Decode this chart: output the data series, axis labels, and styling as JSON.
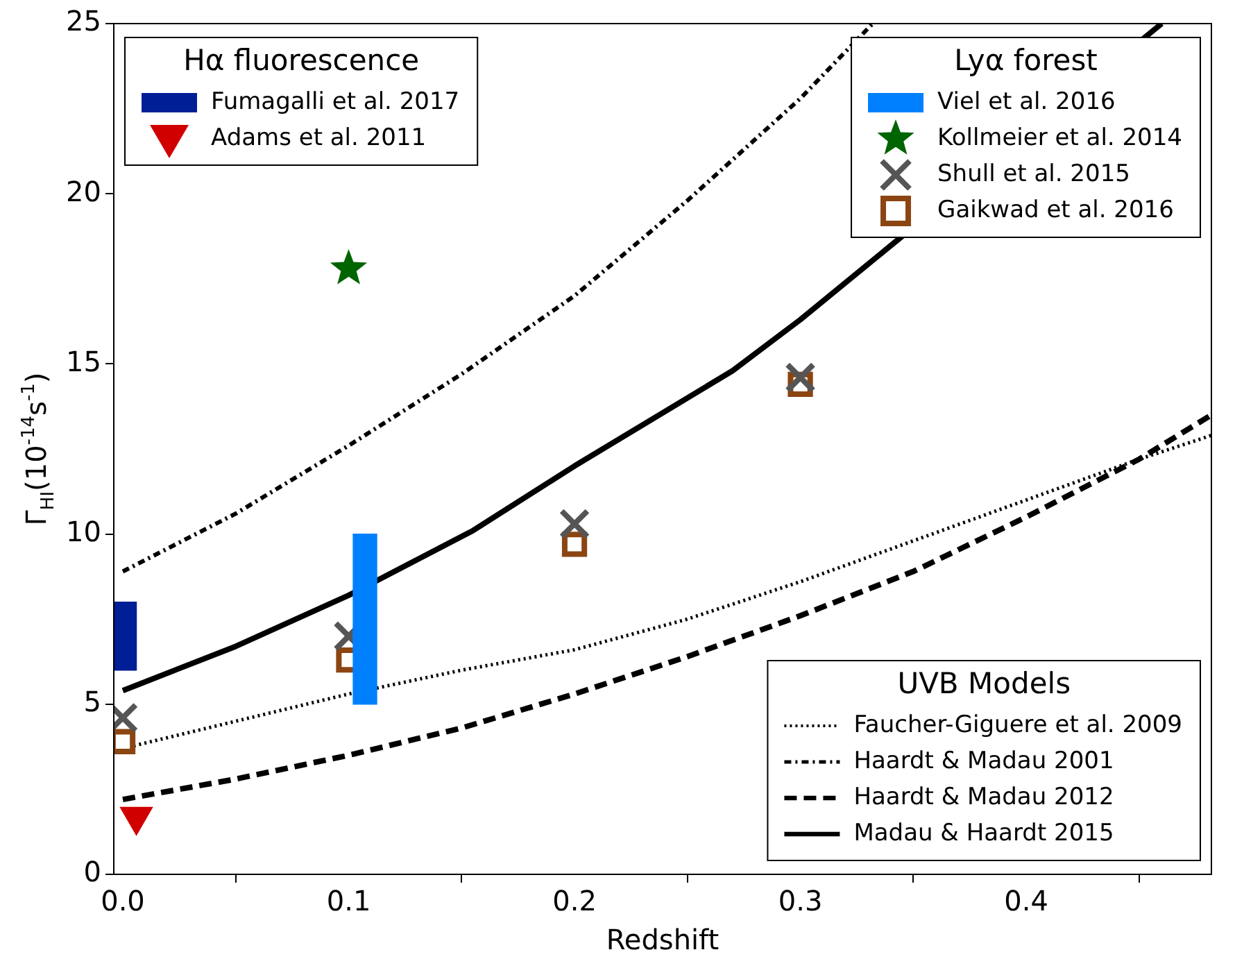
{
  "chart_data": {
    "type": "scatter",
    "xlabel": "Redshift",
    "ylabel": "Γ$_{HI}$(10$^{-14}$s$^{-1}$)",
    "xlim": [
      -0.004,
      0.482
    ],
    "xticks": [
      {
        "value": 0,
        "label": "0.0"
      },
      0.1,
      0.2,
      0.3,
      0.4
    ],
    "ylim": [
      0,
      25
    ],
    "yticks": [
      0,
      5,
      10,
      15,
      20,
      25
    ],
    "grid": false,
    "legend": [
      "top left",
      "top right",
      "bottom right"
    ],
    "legend_title": [
      "Hα fluorescence",
      "Lyα forest",
      "UVB Models"
    ],
    "series": [
      {
        "name": "Fumagalli et al. 2017",
        "type": "bar",
        "color": "#001f96",
        "x": [
          0.006
        ],
        "base": [
          6
        ],
        "values": [
          2
        ]
      },
      {
        "name": "Adams et al. 2011",
        "marker": "triangle-down",
        "color": "#d10000",
        "x": [
          0.006
        ],
        "values": [
          1.7
        ]
      },
      {
        "name": "Viel et al. 2016",
        "type": "bar",
        "color": "#0080ff",
        "x": [
          0.102
        ],
        "base": [
          5
        ],
        "values": [
          5
        ]
      },
      {
        "name": "Kollmeier et al. 2014",
        "marker": "star",
        "color": "#006400",
        "x": [
          0.1
        ],
        "values": [
          17.8
        ]
      },
      {
        "name": "Shull et al. 2015",
        "marker": "cross",
        "color": "#555555",
        "x": [
          0,
          0.1,
          0.2,
          0.3
        ],
        "values": [
          4.6,
          7.0,
          10.3,
          14.6
        ]
      },
      {
        "name": "Gaikwad et al. 2016",
        "marker": "square",
        "color": "#8b4513",
        "x": [
          0,
          0.1,
          0.2,
          0.3
        ],
        "values": [
          3.9,
          6.3,
          9.7,
          14.4
        ]
      },
      {
        "name": "Faucher-Giguere et al. 2009",
        "type": "line",
        "line_style": "dotted",
        "color": "#000000",
        "x": [
          0,
          0.05,
          0.1,
          0.15,
          0.2,
          0.25,
          0.3,
          0.35,
          0.4,
          0.45,
          0.482
        ],
        "values": [
          3.7,
          4.5,
          5.3,
          6.0,
          6.6,
          7.5,
          8.6,
          9.8,
          11.0,
          12.2,
          12.9
        ]
      },
      {
        "name": "Haardt & Madau 2001",
        "type": "line",
        "line_style": "dashdot",
        "color": "#000000",
        "x": [
          0,
          0.05,
          0.1,
          0.15,
          0.2,
          0.25,
          0.3,
          0.332
        ],
        "values": [
          8.9,
          10.6,
          12.6,
          14.7,
          17.0,
          19.8,
          22.8,
          25
        ]
      },
      {
        "name": "Haardt & Madau 2012",
        "type": "line",
        "line_style": "dashed",
        "color": "#000000",
        "x": [
          0,
          0.05,
          0.1,
          0.15,
          0.2,
          0.25,
          0.3,
          0.35,
          0.4,
          0.45,
          0.482
        ],
        "values": [
          2.2,
          2.8,
          3.5,
          4.3,
          5.3,
          6.4,
          7.6,
          8.9,
          10.5,
          12.2,
          13.5
        ]
      },
      {
        "name": "Madau & Haardt 2015",
        "type": "line",
        "line_style": "solid",
        "color": "#000000",
        "x": [
          0,
          0.05,
          0.1,
          0.155,
          0.2,
          0.27,
          0.3,
          0.35,
          0.4,
          0.46
        ],
        "values": [
          5.4,
          6.7,
          8.2,
          10.1,
          12.0,
          14.8,
          16.3,
          null,
          null,
          25
        ]
      }
    ]
  }
}
